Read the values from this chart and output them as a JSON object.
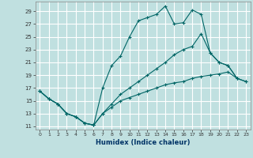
{
  "background_color": "#c0e0e0",
  "grid_color": "#ffffff",
  "line_color": "#006666",
  "xlabel": "Humidex (Indice chaleur)",
  "xlim": [
    -0.5,
    23.5
  ],
  "ylim": [
    10.5,
    30.5
  ],
  "yticks": [
    11,
    13,
    15,
    17,
    19,
    21,
    23,
    25,
    27,
    29
  ],
  "xticks": [
    0,
    1,
    2,
    3,
    4,
    5,
    6,
    7,
    8,
    9,
    10,
    11,
    12,
    13,
    14,
    15,
    16,
    17,
    18,
    19,
    20,
    21,
    22,
    23
  ],
  "line1_x": [
    0,
    1,
    2,
    3,
    4,
    5,
    6,
    7,
    8,
    9,
    10,
    11,
    12,
    13,
    14,
    15,
    16,
    17,
    18,
    19,
    20,
    21,
    22
  ],
  "line1_y": [
    16.5,
    15.3,
    14.5,
    13.0,
    12.5,
    11.5,
    11.2,
    17.0,
    20.5,
    22.0,
    25.0,
    27.5,
    28.0,
    28.5,
    29.8,
    27.0,
    27.2,
    29.2,
    28.5,
    22.5,
    21.0,
    20.5,
    18.5
  ],
  "line2_x": [
    0,
    1,
    2,
    3,
    4,
    5,
    6,
    7,
    8,
    9,
    10,
    11,
    12,
    13,
    14,
    15,
    16,
    17,
    18,
    19,
    20,
    21,
    22,
    23
  ],
  "line2_y": [
    16.5,
    15.3,
    14.5,
    13.0,
    12.5,
    11.5,
    11.2,
    13.0,
    14.5,
    16.0,
    17.0,
    18.0,
    19.0,
    20.0,
    21.0,
    22.2,
    23.0,
    23.5,
    25.5,
    22.5,
    21.0,
    20.5,
    18.5,
    18.0
  ],
  "line3_x": [
    0,
    1,
    2,
    3,
    4,
    5,
    6,
    7,
    8,
    9,
    10,
    11,
    12,
    13,
    14,
    15,
    16,
    17,
    18,
    19,
    20,
    21,
    22,
    23
  ],
  "line3_y": [
    16.5,
    15.3,
    14.5,
    13.0,
    12.5,
    11.5,
    11.2,
    13.0,
    14.0,
    15.0,
    15.5,
    16.0,
    16.5,
    17.0,
    17.5,
    17.8,
    18.0,
    18.5,
    18.8,
    19.0,
    19.2,
    19.5,
    18.5,
    18.0
  ]
}
